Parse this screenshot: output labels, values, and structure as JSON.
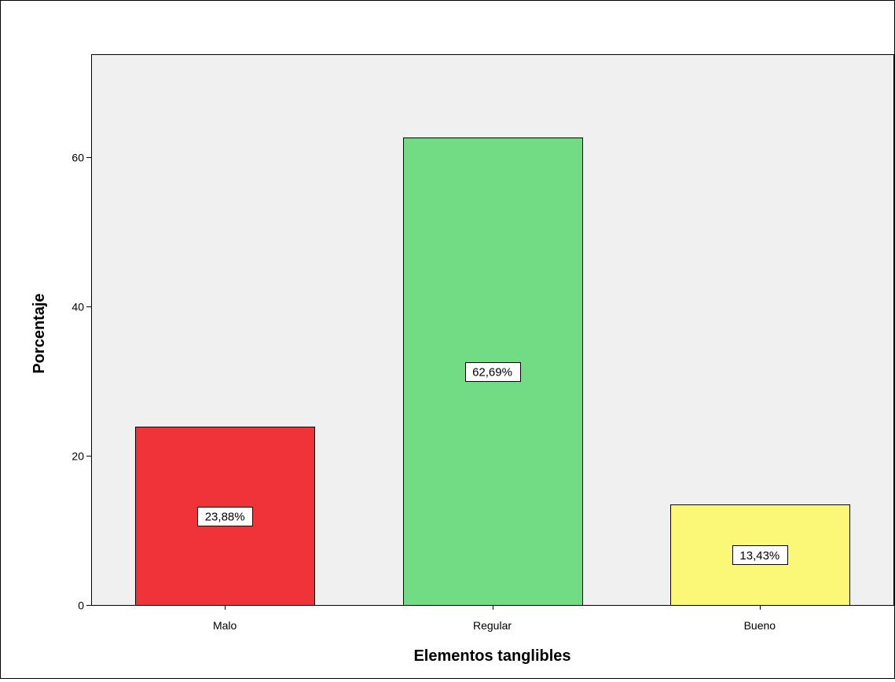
{
  "chart_data": {
    "type": "bar",
    "title": "",
    "xlabel": "Elementos tanglibles",
    "ylabel": "Porcentaje",
    "categories": [
      "Malo",
      "Regular",
      "Bueno"
    ],
    "values": [
      23.88,
      62.69,
      13.43
    ],
    "data_labels": [
      "23,88%",
      "62,69%",
      "13,43%"
    ],
    "colors": [
      "#ef3339",
      "#72dc85",
      "#fbf877"
    ],
    "plot_background": "#f0f0f0",
    "ylim": [
      0,
      73.8
    ],
    "yticks": [
      0,
      20,
      40,
      60
    ],
    "ytick_labels": [
      "0",
      "20",
      "40",
      "60"
    ],
    "grid": false,
    "legend": "none"
  }
}
